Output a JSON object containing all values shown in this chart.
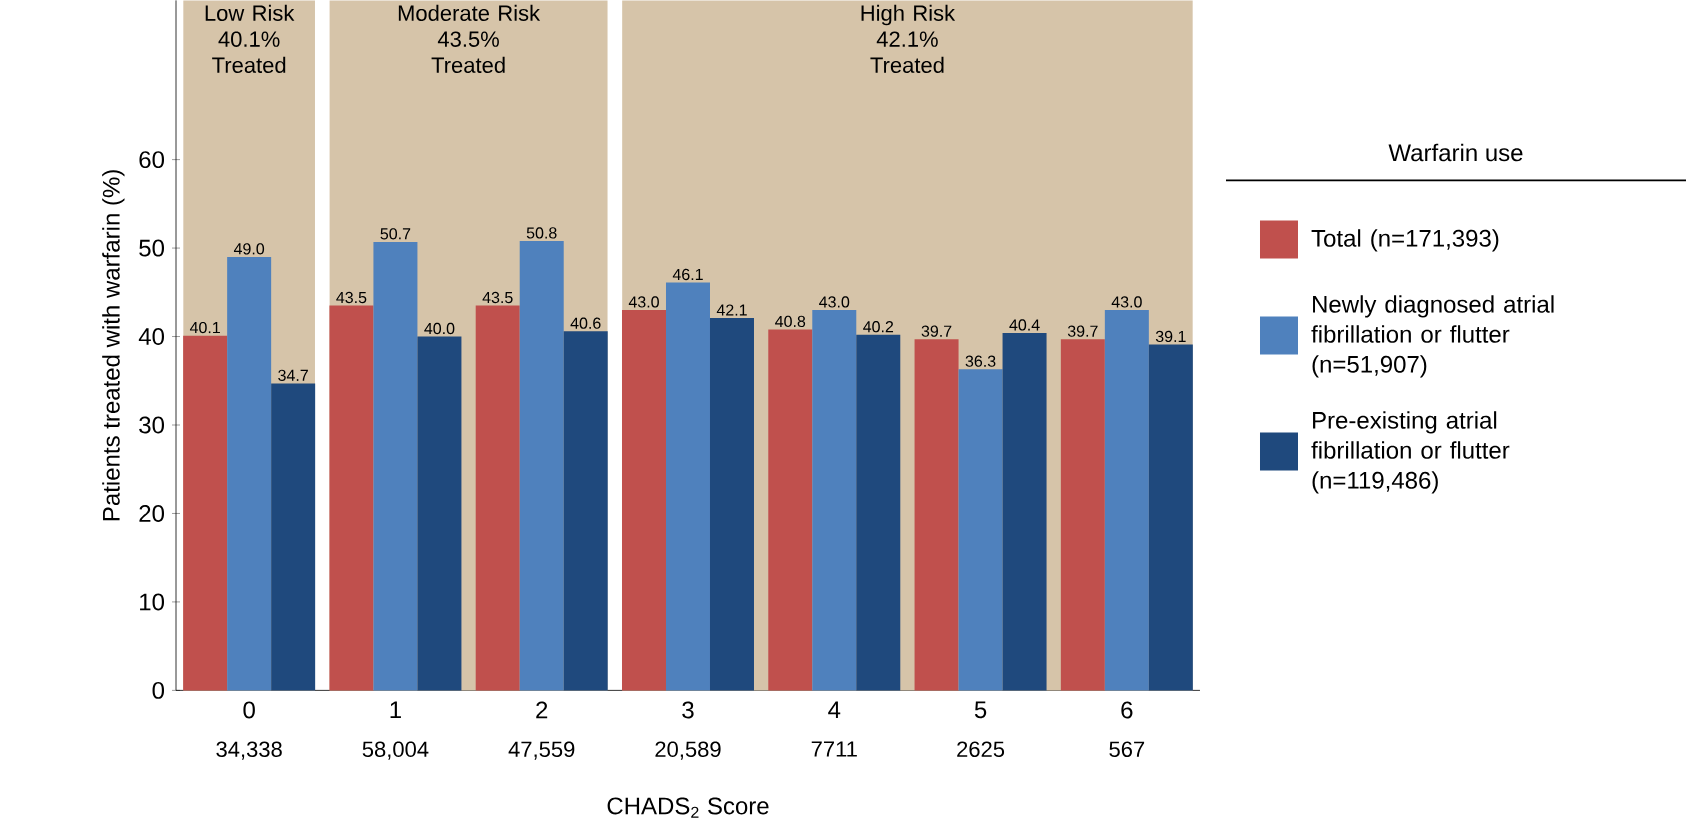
{
  "chart_data": {
    "type": "bar",
    "xlabel": "CHADS$_{2}$ Score",
    "ylabel": "Patients treated with warfarin (%)",
    "legend_title": "Warfarin use",
    "categories": [
      "0",
      "1",
      "2",
      "3",
      "4",
      "5",
      "6"
    ],
    "series": [
      {
        "name": "Total (n=171,393)",
        "color": "#c0504d",
        "values": [
          40.1,
          43.5,
          43.5,
          43.0,
          40.8,
          39.7,
          39.7
        ],
        "value_labels": [
          "40.1",
          "43.5",
          "43.5",
          "43.0",
          "40.8",
          "39.7",
          "39.7"
        ]
      },
      {
        "name": "Newly diagnosed atrial fibrillation or flutter (n=51,907)",
        "color": "#4f81bd",
        "values": [
          49.0,
          50.7,
          50.8,
          46.1,
          43.0,
          36.3,
          43.0
        ],
        "value_labels": [
          "49.0",
          "50.7",
          "50.8",
          "46.1",
          "43.0",
          "36.3",
          "43.0"
        ]
      },
      {
        "name": "Pre-existing atrial fibrillation or flutter (n=119,486)",
        "color": "#1f497d",
        "values": [
          34.7,
          40.0,
          40.6,
          42.1,
          40.2,
          40.4,
          39.1
        ],
        "value_labels": [
          "34.7",
          "40.0",
          "40.6",
          "42.1",
          "40.2",
          "40.4",
          "39.1"
        ]
      }
    ],
    "ylim": [
      0,
      78
    ],
    "yticks": [
      0,
      10,
      20,
      30,
      40,
      50,
      60
    ],
    "legend": "right",
    "bands": [
      {
        "axis": "x",
        "from": "0",
        "to": "0",
        "label": "Low Risk\n40.1%\nTreated",
        "color": "#d6c4a9"
      },
      {
        "axis": "x",
        "from": "1",
        "to": "2",
        "label": "Moderate Risk\n43.5%\nTreated",
        "color": "#d6c4a9"
      },
      {
        "axis": "x",
        "from": "3",
        "to": "6",
        "label": "High Risk\n42.1%\nTreated",
        "color": "#d6c4a9"
      }
    ],
    "annotations": [
      "34,338",
      "58,004",
      "47,559",
      "20,589",
      "7711",
      "2625",
      "567"
    ]
  }
}
